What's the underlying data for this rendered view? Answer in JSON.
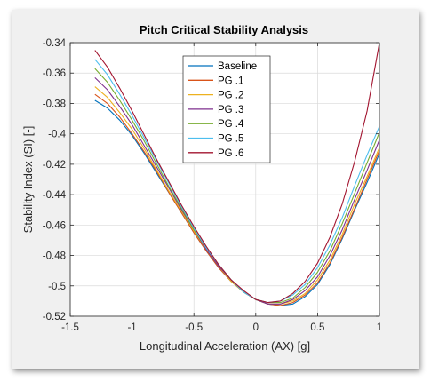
{
  "chart_data": {
    "type": "line",
    "title": "Pitch Critical Stability Analysis",
    "xlabel": "Longitudinal Acceleration (AX) [g]",
    "ylabel": "Stability Index (SI) [-]",
    "xlim": [
      -1.5,
      1
    ],
    "ylim": [
      -0.52,
      -0.34
    ],
    "xticks": [
      -1.5,
      -1,
      -0.5,
      0,
      0.5,
      1
    ],
    "xtick_labels": [
      "-1.5",
      "-1",
      "-0.5",
      "0",
      "0.5",
      "1"
    ],
    "yticks": [
      -0.52,
      -0.5,
      -0.48,
      -0.46,
      -0.44,
      -0.42,
      -0.4,
      -0.38,
      -0.36,
      -0.34
    ],
    "ytick_labels": [
      "-0.52",
      "-0.5",
      "-0.48",
      "-0.46",
      "-0.44",
      "-0.42",
      "-0.4",
      "-0.38",
      "-0.36",
      "-0.34"
    ],
    "grid": true,
    "legend_position": "top-center",
    "x": [
      -1.3,
      -1.2,
      -1.1,
      -1.0,
      -0.9,
      -0.8,
      -0.7,
      -0.6,
      -0.5,
      -0.4,
      -0.3,
      -0.2,
      -0.1,
      0.0,
      0.1,
      0.2,
      0.3,
      0.4,
      0.5,
      0.6,
      0.7,
      0.8,
      0.9,
      1.0
    ],
    "series": [
      {
        "name": "Baseline",
        "color": "#0072bd",
        "values": [
          -0.378,
          -0.383,
          -0.391,
          -0.401,
          -0.413,
          -0.426,
          -0.439,
          -0.452,
          -0.465,
          -0.477,
          -0.488,
          -0.497,
          -0.504,
          -0.509,
          -0.512,
          -0.513,
          -0.512,
          -0.507,
          -0.499,
          -0.486,
          -0.469,
          -0.45,
          -0.432,
          -0.413
        ]
      },
      {
        "name": "PG .1",
        "color": "#d95319",
        "values": [
          -0.374,
          -0.38,
          -0.389,
          -0.4,
          -0.412,
          -0.425,
          -0.439,
          -0.452,
          -0.465,
          -0.477,
          -0.488,
          -0.497,
          -0.504,
          -0.509,
          -0.512,
          -0.513,
          -0.511,
          -0.506,
          -0.498,
          -0.485,
          -0.468,
          -0.449,
          -0.43,
          -0.411
        ]
      },
      {
        "name": "PG .2",
        "color": "#edb120",
        "values": [
          -0.369,
          -0.376,
          -0.386,
          -0.397,
          -0.41,
          -0.424,
          -0.438,
          -0.451,
          -0.464,
          -0.476,
          -0.487,
          -0.497,
          -0.504,
          -0.509,
          -0.512,
          -0.512,
          -0.51,
          -0.505,
          -0.496,
          -0.483,
          -0.466,
          -0.446,
          -0.428,
          -0.409
        ]
      },
      {
        "name": "PG .3",
        "color": "#7e2f8e",
        "values": [
          -0.363,
          -0.371,
          -0.382,
          -0.394,
          -0.408,
          -0.422,
          -0.436,
          -0.45,
          -0.463,
          -0.476,
          -0.487,
          -0.496,
          -0.504,
          -0.509,
          -0.512,
          -0.512,
          -0.509,
          -0.503,
          -0.494,
          -0.48,
          -0.463,
          -0.443,
          -0.424,
          -0.404
        ]
      },
      {
        "name": "PG .4",
        "color": "#77ac30",
        "values": [
          -0.357,
          -0.366,
          -0.378,
          -0.391,
          -0.405,
          -0.42,
          -0.435,
          -0.449,
          -0.463,
          -0.475,
          -0.486,
          -0.496,
          -0.504,
          -0.509,
          -0.511,
          -0.511,
          -0.508,
          -0.501,
          -0.491,
          -0.477,
          -0.459,
          -0.439,
          -0.419,
          -0.399
        ]
      },
      {
        "name": "PG .5",
        "color": "#4dbeee",
        "values": [
          -0.351,
          -0.361,
          -0.374,
          -0.388,
          -0.403,
          -0.418,
          -0.433,
          -0.448,
          -0.462,
          -0.475,
          -0.486,
          -0.496,
          -0.504,
          -0.509,
          -0.511,
          -0.51,
          -0.506,
          -0.499,
          -0.488,
          -0.473,
          -0.455,
          -0.434,
          -0.414,
          -0.395
        ]
      },
      {
        "name": "PG .6",
        "color": "#a2142f",
        "values": [
          -0.345,
          -0.356,
          -0.37,
          -0.385,
          -0.401,
          -0.417,
          -0.432,
          -0.447,
          -0.461,
          -0.474,
          -0.486,
          -0.496,
          -0.503,
          -0.509,
          -0.511,
          -0.51,
          -0.505,
          -0.497,
          -0.485,
          -0.468,
          -0.446,
          -0.418,
          -0.385,
          -0.34
        ]
      }
    ]
  }
}
